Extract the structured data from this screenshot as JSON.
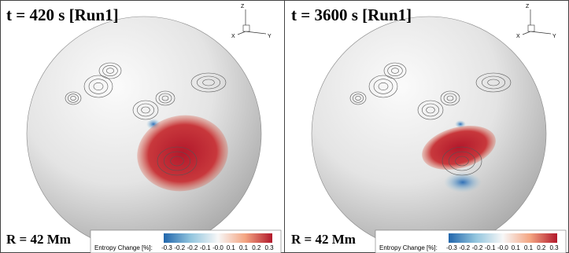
{
  "panels": [
    {
      "title": "t = 420 s [Run1]",
      "radius_label": "R = 42 Mm",
      "axes": {
        "z": "Z",
        "x": "X",
        "y": "Y"
      },
      "colorbar": {
        "label": "Entropy Change [%]:",
        "ticks": [
          "-0.3",
          "-0.2",
          "-0.2",
          "-0.1",
          "-0.0",
          "0.1",
          "0.1",
          "0.2",
          "0.3"
        ]
      }
    },
    {
      "title": "t = 3600 s [Run1]",
      "radius_label": "R = 42 Mm",
      "axes": {
        "z": "Z",
        "x": "X",
        "y": "Y"
      },
      "colorbar": {
        "label": "Entropy Change [%]:",
        "ticks": [
          "-0.3",
          "-0.2",
          "-0.2",
          "-0.1",
          "-0.0",
          "0.1",
          "0.1",
          "0.2",
          "0.3"
        ]
      }
    }
  ]
}
